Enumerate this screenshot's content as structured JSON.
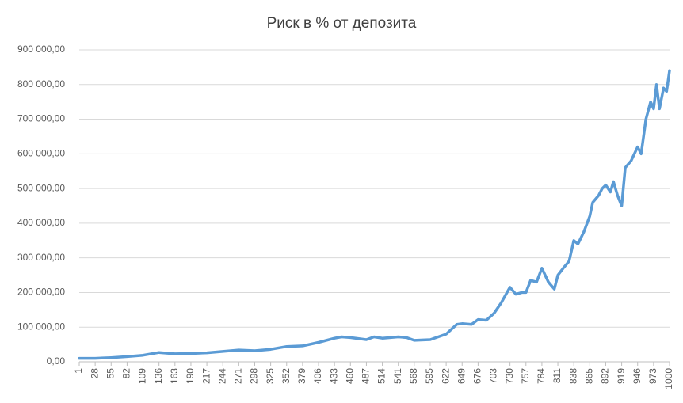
{
  "chart_data": {
    "type": "line",
    "title": "Риск в % от депозита",
    "x": [
      1,
      28,
      55,
      82,
      109,
      136,
      163,
      190,
      217,
      244,
      271,
      298,
      325,
      352,
      379,
      406,
      433,
      445,
      460,
      487,
      500,
      514,
      541,
      555,
      568,
      595,
      622,
      640,
      649,
      665,
      676,
      690,
      703,
      715,
      725,
      730,
      740,
      750,
      757,
      765,
      775,
      784,
      795,
      805,
      811,
      820,
      830,
      838,
      845,
      855,
      865,
      870,
      880,
      886,
      892,
      900,
      905,
      912,
      919,
      925,
      935,
      946,
      952,
      960,
      968,
      973,
      978,
      983,
      990,
      995,
      1000
    ],
    "series": [
      {
        "color": "#5b9bd5",
        "values": [
          10000,
          10000,
          12000,
          15000,
          19000,
          27000,
          23000,
          24000,
          26000,
          30000,
          34000,
          32000,
          36000,
          44000,
          46000,
          56000,
          68000,
          72000,
          70000,
          64000,
          72000,
          68000,
          72000,
          70000,
          62000,
          64000,
          80000,
          108000,
          110000,
          108000,
          122000,
          120000,
          140000,
          170000,
          200000,
          215000,
          195000,
          200000,
          200000,
          235000,
          230000,
          270000,
          230000,
          210000,
          250000,
          270000,
          290000,
          350000,
          340000,
          375000,
          420000,
          460000,
          480000,
          500000,
          510000,
          490000,
          520000,
          480000,
          450000,
          560000,
          580000,
          620000,
          600000,
          700000,
          750000,
          730000,
          800000,
          730000,
          790000,
          780000,
          840000
        ]
      }
    ],
    "xlim": [
      1,
      1000
    ],
    "xticks": [
      1,
      28,
      55,
      82,
      109,
      136,
      163,
      190,
      217,
      244,
      271,
      298,
      325,
      352,
      379,
      406,
      433,
      460,
      487,
      514,
      541,
      568,
      595,
      622,
      649,
      676,
      703,
      730,
      757,
      784,
      811,
      838,
      865,
      892,
      919,
      946,
      973,
      1000
    ],
    "ylim": [
      0,
      900000
    ],
    "yticks": [
      {
        "value": 0,
        "label": "0,00"
      },
      {
        "value": 100000,
        "label": "100 000,00"
      },
      {
        "value": 200000,
        "label": "200 000,00"
      },
      {
        "value": 300000,
        "label": "300 000,00"
      },
      {
        "value": 400000,
        "label": "400 000,00"
      },
      {
        "value": 500000,
        "label": "500 000,00"
      },
      {
        "value": 600000,
        "label": "600 000,00"
      },
      {
        "value": 700000,
        "label": "700 000,00"
      },
      {
        "value": 800000,
        "label": "800 000,00"
      },
      {
        "value": 900000,
        "label": "900 000,00"
      }
    ],
    "grid": true
  }
}
